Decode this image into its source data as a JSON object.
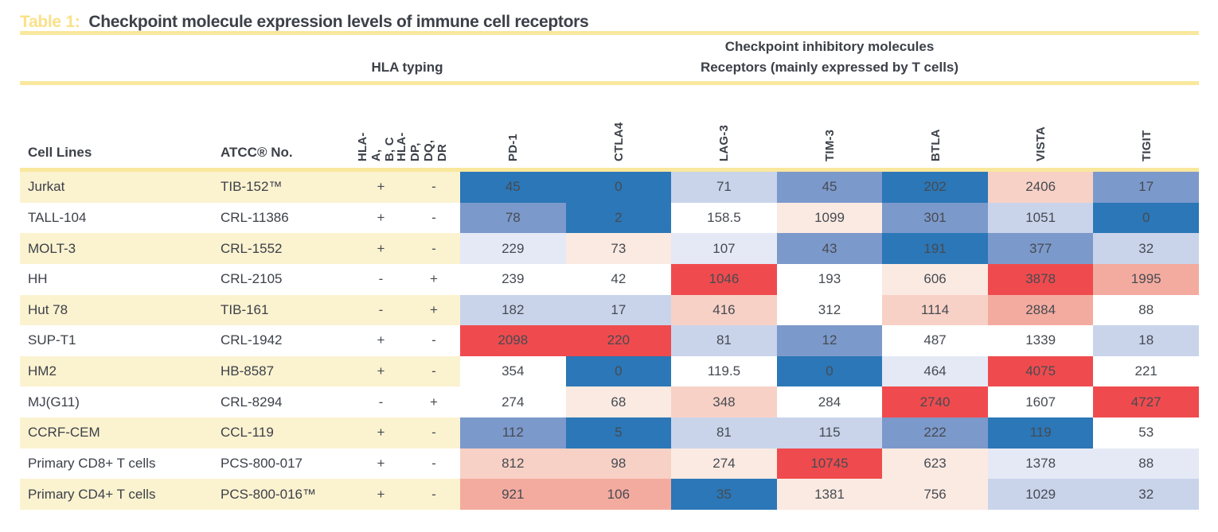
{
  "title": {
    "label": "Table 1:",
    "text": "Checkpoint molecule expression levels of immune cell receptors"
  },
  "groups": {
    "hla": "HLA typing",
    "checkpoint_line1": "Checkpoint inhibitory molecules",
    "checkpoint_line2": "Receptors (mainly expressed by T cells)"
  },
  "columns": {
    "cell_lines": "Cell Lines",
    "atcc": "ATCC® No.",
    "hla_rotated": [
      "HLA-A,\nB, C",
      "HLA-DP,\nDQ, DR"
    ],
    "receptors": [
      "PD-1",
      "CTLA4",
      "LAG-3",
      "TIM-3",
      "BTLA",
      "VISTA",
      "TIGIT"
    ]
  },
  "accent": {
    "cream_row": "#FBF2D0",
    "rule_yellow": "#F9E79D",
    "title_label": "#FAE189",
    "text_dark": "#3C4048",
    "value_text": "#464B52"
  },
  "heat_colors": {
    "b4": "#2B77B7",
    "b3": "#7C99CB",
    "b2": "#C9D4EB",
    "b1": "#E4E9F5",
    "w": "#FFFFFF",
    "r1": "#FBEAE2",
    "r2": "#F8D1C6",
    "r3": "#F4AB9F",
    "r4": "#EF4B4E"
  },
  "rows": [
    {
      "cell_line": "Jurkat",
      "atcc": "TIB-152™",
      "hla1": "+",
      "hla2": "-",
      "stripe": "cream",
      "values": [
        {
          "v": "45",
          "c": "b4"
        },
        {
          "v": "0",
          "c": "b4"
        },
        {
          "v": "71",
          "c": "b2"
        },
        {
          "v": "45",
          "c": "b3"
        },
        {
          "v": "202",
          "c": "b4"
        },
        {
          "v": "2406",
          "c": "r2"
        },
        {
          "v": "17",
          "c": "b3"
        }
      ]
    },
    {
      "cell_line": "TALL-104",
      "atcc": "CRL-11386",
      "hla1": "+",
      "hla2": "-",
      "stripe": "white",
      "values": [
        {
          "v": "78",
          "c": "b3"
        },
        {
          "v": "2",
          "c": "b4"
        },
        {
          "v": "158.5",
          "c": "w"
        },
        {
          "v": "1099",
          "c": "r1"
        },
        {
          "v": "301",
          "c": "b3"
        },
        {
          "v": "1051",
          "c": "b2"
        },
        {
          "v": "0",
          "c": "b4"
        }
      ]
    },
    {
      "cell_line": "MOLT-3",
      "atcc": "CRL-1552",
      "hla1": "+",
      "hla2": "-",
      "stripe": "cream",
      "values": [
        {
          "v": "229",
          "c": "b1"
        },
        {
          "v": "73",
          "c": "r1"
        },
        {
          "v": "107",
          "c": "b1"
        },
        {
          "v": "43",
          "c": "b3"
        },
        {
          "v": "191",
          "c": "b4"
        },
        {
          "v": "377",
          "c": "b3"
        },
        {
          "v": "32",
          "c": "b2"
        }
      ]
    },
    {
      "cell_line": "HH",
      "atcc": "CRL-2105",
      "hla1": "-",
      "hla2": "+",
      "stripe": "white",
      "values": [
        {
          "v": "239",
          "c": "w"
        },
        {
          "v": "42",
          "c": "w"
        },
        {
          "v": "1046",
          "c": "r4"
        },
        {
          "v": "193",
          "c": "w"
        },
        {
          "v": "606",
          "c": "r1"
        },
        {
          "v": "3878",
          "c": "r4"
        },
        {
          "v": "1995",
          "c": "r3"
        }
      ]
    },
    {
      "cell_line": "Hut 78",
      "atcc": "TIB-161",
      "hla1": "-",
      "hla2": "+",
      "stripe": "cream",
      "values": [
        {
          "v": "182",
          "c": "b2"
        },
        {
          "v": "17",
          "c": "b2"
        },
        {
          "v": "416",
          "c": "r2"
        },
        {
          "v": "312",
          "c": "w"
        },
        {
          "v": "1114",
          "c": "r2"
        },
        {
          "v": "2884",
          "c": "r3"
        },
        {
          "v": "88",
          "c": "w"
        }
      ]
    },
    {
      "cell_line": "SUP-T1",
      "atcc": "CRL-1942",
      "hla1": "+",
      "hla2": "-",
      "stripe": "white",
      "values": [
        {
          "v": "2098",
          "c": "r4"
        },
        {
          "v": "220",
          "c": "r4"
        },
        {
          "v": "81",
          "c": "b2"
        },
        {
          "v": "12",
          "c": "b3"
        },
        {
          "v": "487",
          "c": "w"
        },
        {
          "v": "1339",
          "c": "w"
        },
        {
          "v": "18",
          "c": "b2"
        }
      ]
    },
    {
      "cell_line": "HM2",
      "atcc": "HB-8587",
      "hla1": "+",
      "hla2": "-",
      "stripe": "cream",
      "values": [
        {
          "v": "354",
          "c": "w"
        },
        {
          "v": "0",
          "c": "b4"
        },
        {
          "v": "119.5",
          "c": "w"
        },
        {
          "v": "0",
          "c": "b4"
        },
        {
          "v": "464",
          "c": "b1"
        },
        {
          "v": "4075",
          "c": "r4"
        },
        {
          "v": "221",
          "c": "w"
        }
      ]
    },
    {
      "cell_line": "MJ(G11)",
      "atcc": "CRL-8294",
      "hla1": "-",
      "hla2": "+",
      "stripe": "white",
      "values": [
        {
          "v": "274",
          "c": "w"
        },
        {
          "v": "68",
          "c": "r1"
        },
        {
          "v": "348",
          "c": "r2"
        },
        {
          "v": "284",
          "c": "w"
        },
        {
          "v": "2740",
          "c": "r4"
        },
        {
          "v": "1607",
          "c": "w"
        },
        {
          "v": "4727",
          "c": "r4"
        }
      ]
    },
    {
      "cell_line": "CCRF-CEM",
      "atcc": "CCL-119",
      "hla1": "+",
      "hla2": "-",
      "stripe": "cream",
      "values": [
        {
          "v": "112",
          "c": "b3"
        },
        {
          "v": "5",
          "c": "b4"
        },
        {
          "v": "81",
          "c": "b2"
        },
        {
          "v": "115",
          "c": "b2"
        },
        {
          "v": "222",
          "c": "b3"
        },
        {
          "v": "119",
          "c": "b4"
        },
        {
          "v": "53",
          "c": "w"
        }
      ]
    },
    {
      "cell_line": "Primary CD8+ T cells",
      "atcc": "PCS-800-017",
      "hla1": "+",
      "hla2": "-",
      "stripe": "white",
      "values": [
        {
          "v": "812",
          "c": "r2"
        },
        {
          "v": "98",
          "c": "r2"
        },
        {
          "v": "274",
          "c": "r1"
        },
        {
          "v": "10745",
          "c": "r4"
        },
        {
          "v": "623",
          "c": "r1"
        },
        {
          "v": "1378",
          "c": "b1"
        },
        {
          "v": "88",
          "c": "b1"
        }
      ]
    },
    {
      "cell_line": "Primary CD4+ T cells",
      "atcc": "PCS-800-016™",
      "hla1": "+",
      "hla2": "-",
      "stripe": "cream",
      "values": [
        {
          "v": "921",
          "c": "r3"
        },
        {
          "v": "106",
          "c": "r3"
        },
        {
          "v": "35",
          "c": "b4"
        },
        {
          "v": "1381",
          "c": "r1"
        },
        {
          "v": "756",
          "c": "r1"
        },
        {
          "v": "1029",
          "c": "b2"
        },
        {
          "v": "32",
          "c": "b2"
        }
      ]
    }
  ]
}
